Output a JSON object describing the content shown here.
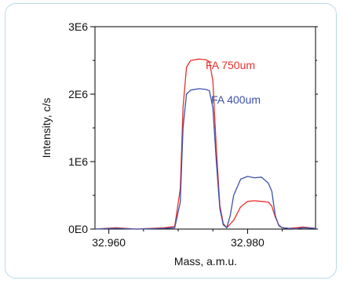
{
  "chart_data": {
    "type": "line",
    "xlabel": "Mass, a.m.u.",
    "ylabel": "Intensity, c/s",
    "xlim": [
      32.958,
      32.9898
    ],
    "ylim": [
      0,
      3000000
    ],
    "x_ticks": [
      32.96,
      32.98
    ],
    "x_tick_labels": [
      "32.960",
      "32.980"
    ],
    "y_ticks": [
      0,
      1000000,
      2000000,
      3000000
    ],
    "y_tick_labels": [
      "0E0",
      "1E6",
      "2E6",
      "3E6"
    ],
    "grid": false,
    "legend": "inline-labels",
    "series": [
      {
        "name": "FA 750um",
        "color": "#e8302c",
        "x": [
          32.958,
          32.961,
          32.964,
          32.966,
          32.968,
          32.9695,
          32.9703,
          32.9707,
          32.9712,
          32.9718,
          32.973,
          32.974,
          32.9745,
          32.975,
          32.9755,
          32.976,
          32.9765,
          32.977,
          32.978,
          32.979,
          32.98,
          32.981,
          32.982,
          32.983,
          32.9835,
          32.984,
          32.9845,
          32.985,
          32.986,
          32.987,
          32.988,
          32.9898
        ],
        "y": [
          0,
          20000,
          0,
          10000,
          20000,
          40000,
          600000,
          1800000,
          2400000,
          2500000,
          2520000,
          2510000,
          2480000,
          2200000,
          1200000,
          350000,
          80000,
          20000,
          130000,
          330000,
          410000,
          420000,
          410000,
          400000,
          340000,
          180000,
          60000,
          20000,
          10000,
          20000,
          30000,
          10000
        ]
      },
      {
        "name": "FA 400um",
        "color": "#3c52a8",
        "x": [
          32.958,
          32.961,
          32.964,
          32.966,
          32.968,
          32.9695,
          32.9703,
          32.9707,
          32.9712,
          32.9718,
          32.973,
          32.974,
          32.9745,
          32.975,
          32.9755,
          32.976,
          32.9765,
          32.977,
          32.9775,
          32.978,
          32.979,
          32.98,
          32.981,
          32.982,
          32.983,
          32.9835,
          32.984,
          32.9845,
          32.985,
          32.986,
          32.987,
          32.988,
          32.9898
        ],
        "y": [
          0,
          10000,
          0,
          5000,
          10000,
          20000,
          400000,
          1500000,
          2000000,
          2060000,
          2080000,
          2070000,
          2050000,
          1800000,
          1000000,
          300000,
          60000,
          20000,
          200000,
          500000,
          740000,
          780000,
          760000,
          770000,
          680000,
          560000,
          200000,
          50000,
          20000,
          10000,
          5000,
          20000,
          10000
        ]
      }
    ]
  }
}
